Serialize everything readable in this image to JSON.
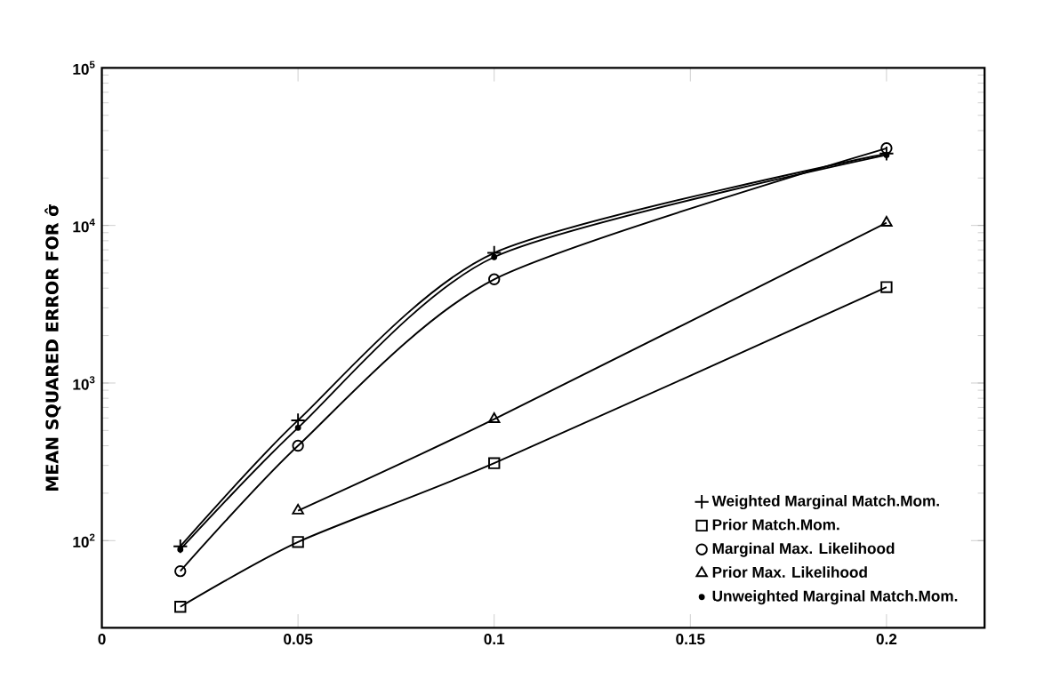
{
  "chart_data": {
    "type": "line",
    "ylabel": "MEAN SQUARED ERROR FOR σ̂",
    "x": [
      0.02,
      0.05,
      0.1,
      0.2
    ],
    "series": [
      {
        "name": "Weighted Marginal Match.Mom.",
        "color": "#000000",
        "marker": "cross",
        "values": [
          92,
          580,
          6700,
          28600
        ]
      },
      {
        "name": "Prior Match.Mom.",
        "color": "#000000",
        "marker": "square",
        "values": [
          38,
          98,
          310,
          4060
        ]
      },
      {
        "name": "Marginal  Max. Likelihood",
        "color": "#000000",
        "marker": "circle",
        "values": [
          64,
          400,
          4550,
          30900
        ]
      },
      {
        "name": "Prior Max. Likelihood",
        "color": "#000000",
        "marker": "triangle",
        "values": [
          null,
          155,
          590,
          10400
        ]
      },
      {
        "name": "Unweighted Marginal Match.Mom.",
        "color": "#000000",
        "marker": "dot",
        "values": [
          88,
          520,
          6300,
          28000
        ]
      }
    ],
    "xlim": [
      0,
      0.225
    ],
    "xticks": [
      0,
      0.05,
      0.1,
      0.15,
      0.2
    ],
    "ylim": [
      28,
      100000
    ],
    "yticks": [
      {
        "value": 100,
        "label": "10$^{2}$"
      },
      {
        "value": 1000,
        "label": "10$^{3}$"
      },
      {
        "value": 10000,
        "label": "10$^{4}$"
      },
      {
        "value": 100000,
        "label": "10$^{5}$"
      }
    ],
    "log": "y",
    "grid": false,
    "legend": "bottom right",
    "line_style": "solid"
  }
}
